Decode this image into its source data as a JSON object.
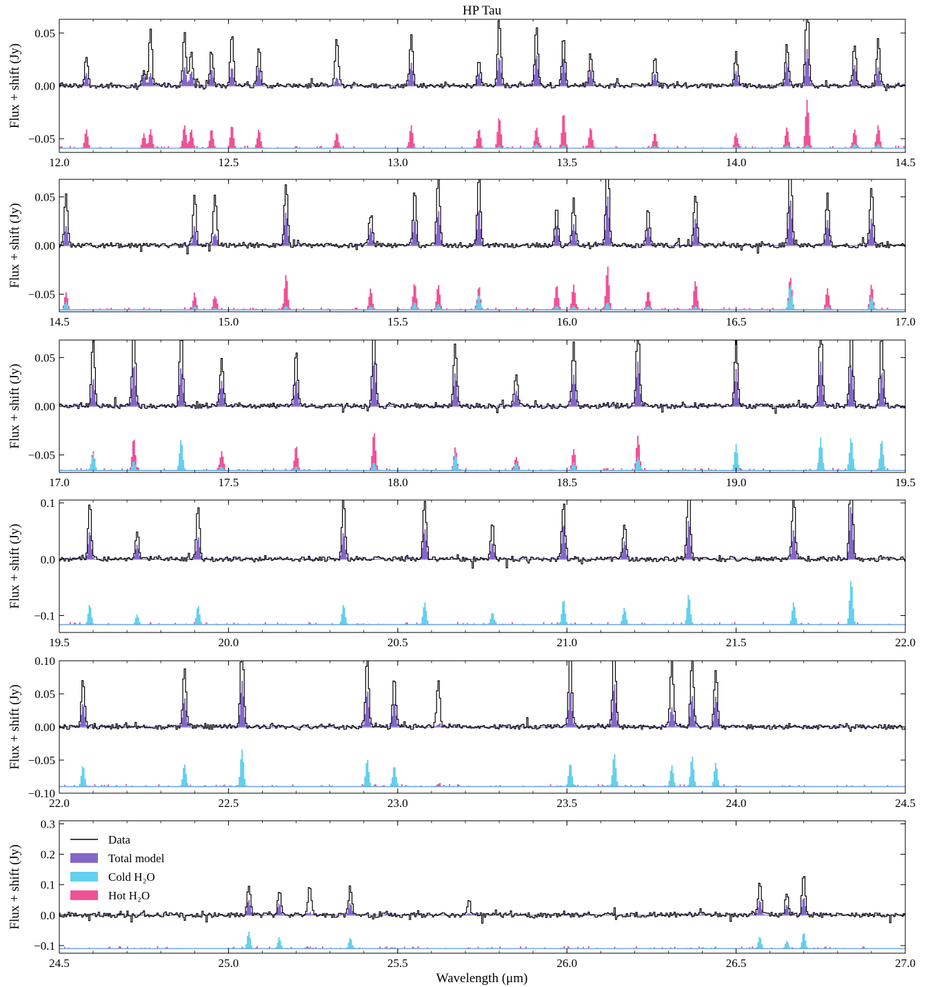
{
  "chart_data": {
    "type": "area",
    "title": "HP Tau",
    "xlabel": "Wavelength (μm)",
    "ylabel": "Flux + shift (Jy)",
    "colors": {
      "data": "#000000",
      "total_model": "#8466c9",
      "cold_h2o": "#62d0ee",
      "hot_h2o": "#f25096"
    },
    "legend": {
      "placement": "upper-left of bottom panel",
      "entries": [
        {
          "label": "Data",
          "style": "line",
          "color": "#000000"
        },
        {
          "label": "Total model",
          "style": "fill",
          "color": "#8466c9"
        },
        {
          "label": "Cold H₂O",
          "style": "fill",
          "color": "#62d0ee"
        },
        {
          "label": "Hot H₂O",
          "style": "fill",
          "color": "#f25096"
        }
      ]
    },
    "panels": [
      {
        "xlim": [
          12.0,
          14.5
        ],
        "ylim": [
          -0.063,
          0.063
        ],
        "xticks": [
          12.0,
          12.5,
          13.0,
          13.5,
          14.0,
          14.5
        ],
        "xtick_labels": [
          "12.0",
          "12.5",
          "13.0",
          "13.5",
          "14.0",
          "14.5"
        ],
        "yticks": [
          -0.05,
          0.0,
          0.05
        ],
        "ytick_labels": [
          "−0.05",
          "0.00",
          "0.05"
        ],
        "water_offset": -0.059,
        "lines": [
          {
            "x": 12.08,
            "d": 0.018,
            "m": 0.012,
            "h": 0.018,
            "c": 0.0
          },
          {
            "x": 12.25,
            "d": 0.006,
            "m": 0.012,
            "h": 0.014,
            "c": 0.0
          },
          {
            "x": 12.27,
            "d": 0.044,
            "m": 0.012,
            "h": 0.018,
            "c": 0.0
          },
          {
            "x": 12.37,
            "d": 0.034,
            "m": 0.018,
            "h": 0.022,
            "c": 0.0
          },
          {
            "x": 12.39,
            "d": 0.02,
            "m": 0.014,
            "h": 0.018,
            "c": 0.0
          },
          {
            "x": 12.45,
            "d": 0.02,
            "m": 0.016,
            "h": 0.018,
            "c": 0.0
          },
          {
            "x": 12.51,
            "d": 0.034,
            "m": 0.018,
            "h": 0.022,
            "c": 0.0
          },
          {
            "x": 12.59,
            "d": 0.02,
            "m": 0.018,
            "h": 0.018,
            "c": 0.0
          },
          {
            "x": 12.82,
            "d": 0.038,
            "m": 0.008,
            "h": 0.015,
            "c": 0.0
          },
          {
            "x": 13.04,
            "d": 0.028,
            "m": 0.022,
            "h": 0.022,
            "c": 0.0
          },
          {
            "x": 13.24,
            "d": 0.014,
            "m": 0.012,
            "h": 0.018,
            "c": 0.0
          },
          {
            "x": 13.3,
            "d": 0.04,
            "m": 0.028,
            "h": 0.03,
            "c": 0.002
          },
          {
            "x": 13.41,
            "d": 0.032,
            "m": 0.03,
            "h": 0.02,
            "c": 0.004
          },
          {
            "x": 13.49,
            "d": 0.024,
            "m": 0.028,
            "h": 0.034,
            "c": 0.003
          },
          {
            "x": 13.57,
            "d": 0.018,
            "m": 0.016,
            "h": 0.02,
            "c": 0.0
          },
          {
            "x": 13.76,
            "d": 0.016,
            "m": 0.012,
            "h": 0.015,
            "c": 0.002
          },
          {
            "x": 14.0,
            "d": 0.02,
            "m": 0.014,
            "h": 0.014,
            "c": 0.002
          },
          {
            "x": 14.15,
            "d": 0.02,
            "m": 0.022,
            "h": 0.02,
            "c": 0.003
          },
          {
            "x": 14.21,
            "d": 0.052,
            "m": 0.035,
            "h": 0.046,
            "c": 0.003
          },
          {
            "x": 14.35,
            "d": 0.022,
            "m": 0.02,
            "h": 0.018,
            "c": 0.004
          },
          {
            "x": 14.42,
            "d": 0.028,
            "m": 0.018,
            "h": 0.022,
            "c": 0.004
          }
        ]
      },
      {
        "xlim": [
          14.5,
          17.0
        ],
        "ylim": [
          -0.068,
          0.068
        ],
        "xticks": [
          14.5,
          15.0,
          15.5,
          16.0,
          16.5,
          17.0
        ],
        "xtick_labels": [
          "14.5",
          "15.0",
          "15.5",
          "16.0",
          "16.5",
          "17.0"
        ],
        "yticks": [
          -0.05,
          0.0,
          0.05
        ],
        "ytick_labels": [
          "−0.05",
          "0.00",
          "0.05"
        ],
        "water_offset": -0.066,
        "lines": [
          {
            "x": 14.52,
            "d": 0.038,
            "m": 0.02,
            "h": 0.018,
            "c": 0.008
          },
          {
            "x": 14.9,
            "d": 0.036,
            "m": 0.018,
            "h": 0.016,
            "c": 0.004
          },
          {
            "x": 14.96,
            "d": 0.042,
            "m": 0.012,
            "h": 0.014,
            "c": 0.002
          },
          {
            "x": 15.17,
            "d": 0.036,
            "m": 0.034,
            "h": 0.036,
            "c": 0.004
          },
          {
            "x": 15.42,
            "d": 0.022,
            "m": 0.018,
            "h": 0.022,
            "c": 0.004
          },
          {
            "x": 15.55,
            "d": 0.034,
            "m": 0.028,
            "h": 0.028,
            "c": 0.008
          },
          {
            "x": 15.62,
            "d": 0.04,
            "m": 0.036,
            "h": 0.026,
            "c": 0.006
          },
          {
            "x": 15.74,
            "d": 0.04,
            "m": 0.038,
            "h": 0.024,
            "c": 0.016
          },
          {
            "x": 15.97,
            "d": 0.022,
            "m": 0.022,
            "h": 0.026,
            "c": 0.004
          },
          {
            "x": 16.02,
            "d": 0.028,
            "m": 0.022,
            "h": 0.026,
            "c": 0.004
          },
          {
            "x": 16.12,
            "d": 0.056,
            "m": 0.05,
            "h": 0.044,
            "c": 0.008
          },
          {
            "x": 16.24,
            "d": 0.02,
            "m": 0.02,
            "h": 0.02,
            "c": 0.004
          },
          {
            "x": 16.38,
            "d": 0.03,
            "m": 0.028,
            "h": 0.03,
            "c": 0.004
          },
          {
            "x": 16.66,
            "d": 0.056,
            "m": 0.048,
            "h": 0.034,
            "c": 0.026
          },
          {
            "x": 16.77,
            "d": 0.03,
            "m": 0.026,
            "h": 0.022,
            "c": 0.004
          },
          {
            "x": 16.9,
            "d": 0.036,
            "m": 0.028,
            "h": 0.026,
            "c": 0.014
          }
        ]
      },
      {
        "xlim": [
          17.0,
          19.5
        ],
        "ylim": [
          -0.068,
          0.068
        ],
        "xticks": [
          17.0,
          17.5,
          18.0,
          18.5,
          19.0,
          19.5
        ],
        "xtick_labels": [
          "17.0",
          "17.5",
          "18.0",
          "18.5",
          "19.0",
          "19.5"
        ],
        "yticks": [
          -0.05,
          0.0,
          0.05
        ],
        "ytick_labels": [
          "−0.05",
          "0.00",
          "0.05"
        ],
        "water_offset": -0.066,
        "lines": [
          {
            "x": 17.1,
            "d": 0.046,
            "m": 0.028,
            "h": 0.02,
            "c": 0.018
          },
          {
            "x": 17.22,
            "d": 0.055,
            "m": 0.044,
            "h": 0.034,
            "c": 0.01
          },
          {
            "x": 17.36,
            "d": 0.05,
            "m": 0.04,
            "h": 0.018,
            "c": 0.032
          },
          {
            "x": 17.48,
            "d": 0.028,
            "m": 0.026,
            "h": 0.02,
            "c": 0.004
          },
          {
            "x": 17.7,
            "d": 0.032,
            "m": 0.028,
            "h": 0.026,
            "c": 0.004
          },
          {
            "x": 17.93,
            "d": 0.042,
            "m": 0.048,
            "h": 0.04,
            "c": 0.008
          },
          {
            "x": 18.17,
            "d": 0.036,
            "m": 0.034,
            "h": 0.024,
            "c": 0.018
          },
          {
            "x": 18.35,
            "d": 0.02,
            "m": 0.016,
            "h": 0.014,
            "c": 0.008
          },
          {
            "x": 18.52,
            "d": 0.04,
            "m": 0.032,
            "h": 0.022,
            "c": 0.008
          },
          {
            "x": 18.71,
            "d": 0.048,
            "m": 0.046,
            "h": 0.036,
            "c": 0.014
          },
          {
            "x": 19.0,
            "d": 0.034,
            "m": 0.036,
            "h": 0.008,
            "c": 0.026
          },
          {
            "x": 19.25,
            "d": 0.05,
            "m": 0.046,
            "h": 0.016,
            "c": 0.034
          },
          {
            "x": 19.34,
            "d": 0.042,
            "m": 0.044,
            "h": 0.014,
            "c": 0.034
          },
          {
            "x": 19.43,
            "d": 0.044,
            "m": 0.036,
            "h": 0.026,
            "c": 0.032
          }
        ]
      },
      {
        "xlim": [
          19.5,
          22.0
        ],
        "ylim": [
          -0.13,
          0.105
        ],
        "xticks": [
          19.5,
          20.0,
          20.5,
          21.0,
          21.5,
          22.0
        ],
        "xtick_labels": [
          "19.5",
          "20.0",
          "20.5",
          "21.0",
          "21.5",
          "22.0"
        ],
        "yticks": [
          -0.1,
          0.0,
          0.1
        ],
        "ytick_labels": [
          "−0.1",
          "0.0",
          "0.1"
        ],
        "water_offset": -0.116,
        "lines": [
          {
            "x": 19.59,
            "d": 0.06,
            "m": 0.05,
            "h": 0.01,
            "c": 0.036
          },
          {
            "x": 19.73,
            "d": 0.028,
            "m": 0.026,
            "h": 0.008,
            "c": 0.018
          },
          {
            "x": 19.91,
            "d": 0.064,
            "m": 0.04,
            "h": 0.012,
            "c": 0.034
          },
          {
            "x": 20.34,
            "d": 0.066,
            "m": 0.048,
            "h": 0.012,
            "c": 0.036
          },
          {
            "x": 20.58,
            "d": 0.06,
            "m": 0.054,
            "h": 0.01,
            "c": 0.04
          },
          {
            "x": 20.78,
            "d": 0.04,
            "m": 0.03,
            "h": 0.01,
            "c": 0.022
          },
          {
            "x": 20.99,
            "d": 0.044,
            "m": 0.064,
            "h": 0.012,
            "c": 0.044
          },
          {
            "x": 21.17,
            "d": 0.036,
            "m": 0.032,
            "h": 0.016,
            "c": 0.03
          },
          {
            "x": 21.36,
            "d": 0.08,
            "m": 0.07,
            "h": 0.014,
            "c": 0.054
          },
          {
            "x": 21.67,
            "d": 0.07,
            "m": 0.052,
            "h": 0.016,
            "c": 0.04
          },
          {
            "x": 21.84,
            "d": 0.1,
            "m": 0.096,
            "h": 0.022,
            "c": 0.08
          }
        ]
      },
      {
        "xlim": [
          22.0,
          24.5
        ],
        "ylim": [
          -0.1,
          0.1
        ],
        "xticks": [
          22.0,
          22.5,
          23.0,
          23.5,
          24.0,
          24.5
        ],
        "xtick_labels": [
          "22.0",
          "22.5",
          "23.0",
          "23.5",
          "24.0",
          "24.5"
        ],
        "yticks": [
          -0.1,
          -0.05,
          0.0,
          0.05,
          0.1
        ],
        "ytick_labels": [
          "−0.10",
          "−0.05",
          "0.00",
          "0.05",
          "0.10"
        ],
        "water_offset": -0.09,
        "lines": [
          {
            "x": 22.07,
            "d": 0.042,
            "m": 0.036,
            "h": 0.008,
            "c": 0.032
          },
          {
            "x": 22.37,
            "d": 0.05,
            "m": 0.044,
            "h": 0.01,
            "c": 0.034
          },
          {
            "x": 22.54,
            "d": 0.075,
            "m": 0.07,
            "h": 0.01,
            "c": 0.056
          },
          {
            "x": 22.91,
            "d": 0.06,
            "m": 0.054,
            "h": 0.008,
            "c": 0.042
          },
          {
            "x": 22.99,
            "d": 0.042,
            "m": 0.038,
            "h": 0.006,
            "c": 0.032
          },
          {
            "x": 23.12,
            "d": 0.066,
            "m": 0.004,
            "h": 0.004,
            "c": 0.0
          },
          {
            "x": 23.51,
            "d": 0.068,
            "m": 0.056,
            "h": 0.024,
            "c": 0.036
          },
          {
            "x": 23.64,
            "d": 0.07,
            "m": 0.066,
            "h": 0.016,
            "c": 0.05
          },
          {
            "x": 23.81,
            "d": 0.078,
            "m": 0.03,
            "h": 0.01,
            "c": 0.032
          },
          {
            "x": 23.87,
            "d": 0.06,
            "m": 0.048,
            "h": 0.01,
            "c": 0.046
          },
          {
            "x": 23.94,
            "d": 0.05,
            "m": 0.046,
            "h": 0.01,
            "c": 0.036
          }
        ]
      },
      {
        "xlim": [
          24.5,
          27.0
        ],
        "ylim": [
          -0.125,
          0.31
        ],
        "xticks": [
          24.5,
          25.0,
          25.5,
          26.0,
          26.5,
          27.0
        ],
        "xtick_labels": [
          "24.5",
          "25.0",
          "25.5",
          "26.0",
          "26.5",
          "27.0"
        ],
        "yticks": [
          -0.1,
          0.0,
          0.1,
          0.2,
          0.3
        ],
        "ytick_labels": [
          "−0.1",
          "0.0",
          "0.1",
          "0.2",
          "0.3"
        ],
        "water_offset": -0.11,
        "lines": [
          {
            "x": 25.06,
            "d": 0.06,
            "m": 0.05,
            "h": 0.006,
            "c": 0.056
          },
          {
            "x": 25.15,
            "d": 0.05,
            "m": 0.036,
            "h": 0.008,
            "c": 0.034
          },
          {
            "x": 25.24,
            "d": 0.09,
            "m": 0.006,
            "h": 0.004,
            "c": 0.0
          },
          {
            "x": 25.36,
            "d": 0.06,
            "m": 0.04,
            "h": 0.008,
            "c": 0.036
          },
          {
            "x": 25.71,
            "d": 0.048,
            "m": 0.006,
            "h": 0.004,
            "c": 0.0
          },
          {
            "x": 26.57,
            "d": 0.07,
            "m": 0.05,
            "h": 0.01,
            "c": 0.04
          },
          {
            "x": 26.65,
            "d": 0.044,
            "m": 0.034,
            "h": 0.008,
            "c": 0.026
          },
          {
            "x": 26.7,
            "d": 0.09,
            "m": 0.06,
            "h": 0.01,
            "c": 0.054
          }
        ]
      }
    ]
  }
}
